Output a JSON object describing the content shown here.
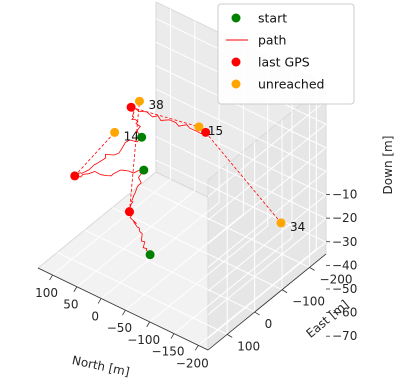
{
  "chart_data": {
    "type": "scatter",
    "projection": "3d",
    "title": "",
    "axes": {
      "north": {
        "label": "North [m]",
        "ticks": [
          100,
          50,
          0,
          -50,
          -100,
          -150,
          -200
        ],
        "tick_labels": [
          "100",
          "50",
          "0",
          "−50",
          "−100",
          "−150",
          "−200"
        ],
        "range": [
          130,
          -220
        ]
      },
      "east": {
        "label": "East [m]",
        "ticks": [
          100,
          0,
          -100,
          -200
        ],
        "tick_labels": [
          "100",
          "0",
          "−100",
          "−200"
        ],
        "range": [
          170,
          -260
        ]
      },
      "down": {
        "label": "Down [m]",
        "ticks": [
          -70,
          -60,
          -50,
          -40,
          -30,
          -20,
          -10
        ],
        "tick_labels": [
          "−70",
          "−60",
          "−50",
          "−40",
          "−30",
          "−20",
          "−10"
        ],
        "range": [
          -75,
          -3
        ],
        "inverted": true
      }
    },
    "grid": true,
    "legend": {
      "placement": "top-right",
      "entries": [
        {
          "label": "start",
          "marker": "dot",
          "color": "#008000"
        },
        {
          "label": "path",
          "marker": "line",
          "color": "#ff0000"
        },
        {
          "label": "last GPS",
          "marker": "dot",
          "color": "#ff0000"
        },
        {
          "label": "unreached",
          "marker": "dot",
          "color": "#ffa500"
        }
      ]
    },
    "series": [
      {
        "name": "start",
        "color": "#008000",
        "points": [
          [
            -50,
            80,
            -60
          ],
          [
            -20,
            50,
            -30
          ],
          [
            -10,
            40,
            -18
          ]
        ]
      },
      {
        "name": "last GPS",
        "color": "#ff0000",
        "points": [
          [
            60,
            160,
            -30
          ],
          [
            -30,
            120,
            -40
          ],
          [
            40,
            -10,
            -15
          ],
          [
            -40,
            -140,
            -30
          ]
        ]
      },
      {
        "name": "unreached",
        "color": "#ffa500",
        "points": [
          [
            40,
            50,
            -20
          ],
          [
            20,
            -5,
            -10
          ],
          [
            -60,
            -80,
            -20
          ],
          [
            -150,
            -220,
            -65
          ]
        ],
        "labels": [
          "14",
          "38",
          "15",
          "34"
        ]
      }
    ],
    "paths": [
      {
        "color": "#ff0000",
        "style": "solid",
        "points": [
          [
            -50,
            80,
            -60
          ],
          [
            -30,
            120,
            -40
          ],
          [
            -20,
            50,
            -30
          ],
          [
            60,
            160,
            -30
          ],
          [
            -10,
            40,
            -18
          ],
          [
            40,
            -10,
            -15
          ],
          [
            -40,
            -140,
            -30
          ]
        ]
      },
      {
        "color": "#ff0000",
        "style": "dashed",
        "from": [
          60,
          160,
          -30
        ],
        "to": [
          40,
          50,
          -20
        ]
      },
      {
        "color": "#ff0000",
        "style": "dashed",
        "from": [
          -30,
          120,
          -40
        ],
        "to": [
          20,
          -5,
          -10
        ]
      },
      {
        "color": "#ff0000",
        "style": "dashed",
        "from": [
          40,
          -10,
          -15
        ],
        "to": [
          -60,
          -80,
          -20
        ]
      },
      {
        "color": "#ff0000",
        "style": "dashed",
        "from": [
          -40,
          -140,
          -30
        ],
        "to": [
          -150,
          -220,
          -65
        ]
      }
    ],
    "colors": {
      "start": "#008000",
      "path": "#ff0000",
      "last_gps": "#ff0000",
      "unreached": "#ffa500"
    }
  }
}
